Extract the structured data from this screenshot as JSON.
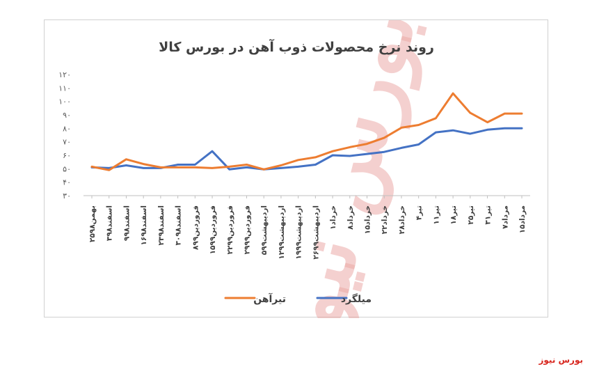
{
  "chart_data": {
    "type": "line",
    "title": "روند نرخ محصولات ذوب آهن در بورس کالا",
    "xlabel": "",
    "ylabel": "",
    "ylim": [
      30,
      120
    ],
    "yticks": [
      30,
      40,
      50,
      60,
      70,
      80,
      90,
      100,
      110,
      120
    ],
    "ytick_labels": [
      "۳۰",
      "۴۰",
      "۵۰",
      "۶۰",
      "۷۰",
      "۸۰",
      "۹۰",
      "۱۰۰",
      "۱۱۰",
      "۱۲۰"
    ],
    "grid": false,
    "legend_position": "bottom",
    "categories": [
      "۲۵بهمن۹۸",
      "۳اسفند۹۸",
      "۹اسفند۹۸",
      "۱۶اسفند۹۸",
      "۲۳اسفند۹۸",
      "۳۰اسفند۹۸",
      "۸فروردین۹۹",
      "۱۵فروردین۹۹",
      "۲۲فروردین۹۹",
      "۲۹فروردین۹۹",
      "۵اردیبهشت۹۹",
      "۱۲اردیبهشت۹۹",
      "۱۹اردیبهشت۹۹",
      "۲۶اردیبهشت۹۹",
      "۱خرداد",
      "۸خرداد",
      "۱۵خرداد",
      "۲۲خرداد",
      "۲۸خرداد",
      "۴تیر",
      "۱۱تیر",
      "۱۸تیر",
      "۲۵تیر",
      "۳۱تیر",
      "۷مرداد",
      "۱۵مرداد"
    ],
    "series": [
      {
        "name": "میلگرد",
        "color": "#4472c4",
        "values": [
          51,
          50.5,
          52.5,
          50.5,
          50.5,
          53,
          53,
          63,
          49.5,
          51,
          49.5,
          50.5,
          51.5,
          53,
          60,
          59.5,
          61,
          62.5,
          65.5,
          68,
          77,
          78.5,
          76,
          79,
          80,
          80
        ]
      },
      {
        "name": "تیرآهن",
        "color": "#ed7d31",
        "values": [
          51.5,
          49,
          57,
          53.5,
          51,
          51,
          51,
          50.5,
          51.5,
          53,
          49.5,
          52.5,
          56.5,
          58.5,
          63,
          66,
          68.5,
          73,
          80.5,
          82.5,
          87.5,
          106,
          91.5,
          84.5,
          91,
          91
        ]
      }
    ]
  },
  "watermark": {
    "text": "بورس نیوز"
  },
  "source_label": "بورس نیوز"
}
